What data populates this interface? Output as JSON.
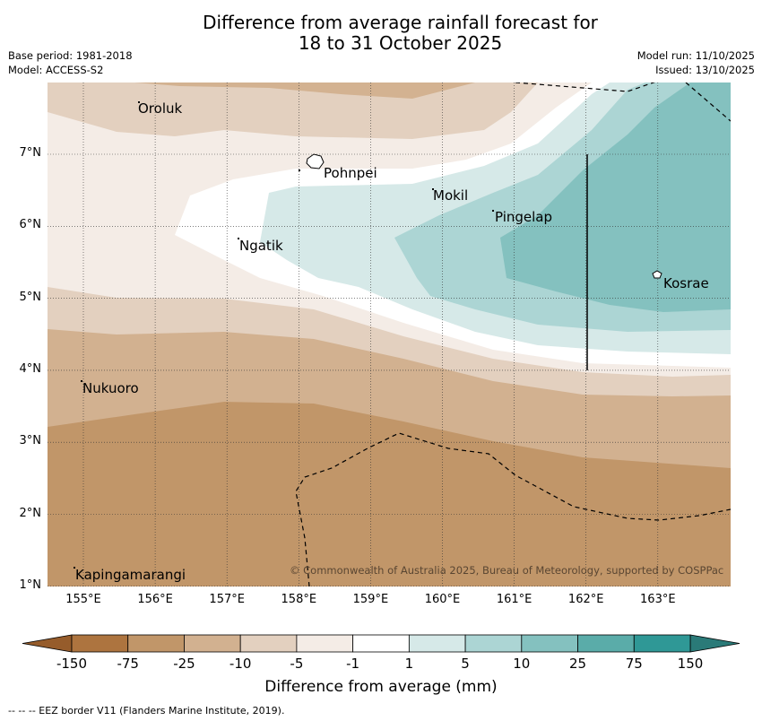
{
  "title": [
    "Difference from average rainfall forecast for",
    "18 to 31 October 2025"
  ],
  "meta_left": [
    "Base period: 1981-2018",
    "Model: ACCESS-S2"
  ],
  "meta_right": [
    "Model run: 11/10/2025",
    "Issued: 13/10/2025"
  ],
  "lon_ticks": [
    "155°E",
    "156°E",
    "157°E",
    "158°E",
    "159°E",
    "160°E",
    "161°E",
    "162°E",
    "163°E"
  ],
  "lat_ticks": [
    "7°N",
    "6°N",
    "5°N",
    "4°N",
    "3°N",
    "2°N",
    "1°N"
  ],
  "places": [
    "Oroluk",
    "Pohnpei",
    "Mokil",
    "Pingelap",
    "Ngatik",
    "Kosrae",
    "Nukuoro",
    "Kapingamarangi"
  ],
  "copyright": "© Commonwealth of Australia 2025, Bureau of Meteorology, supported by COSPPac",
  "colorbar": {
    "labels": [
      "-150",
      "-75",
      "-25",
      "-10",
      "-5",
      "-1",
      "1",
      "5",
      "10",
      "25",
      "75",
      "150"
    ],
    "colors": [
      "#ad743f",
      "#c19669",
      "#d2b190",
      "#e3d0bf",
      "#f4ece6",
      "#ffffff",
      "#d6e9e8",
      "#acd5d4",
      "#84c1bf",
      "#5aaca9",
      "#2f9896"
    ],
    "under_color": "#965c2b",
    "over_color": "#2a7a78",
    "title": "Difference from average (mm)"
  },
  "footnote": "--  --  -- EEZ border V11 (Flanders Marine Institute, 2019)."
}
